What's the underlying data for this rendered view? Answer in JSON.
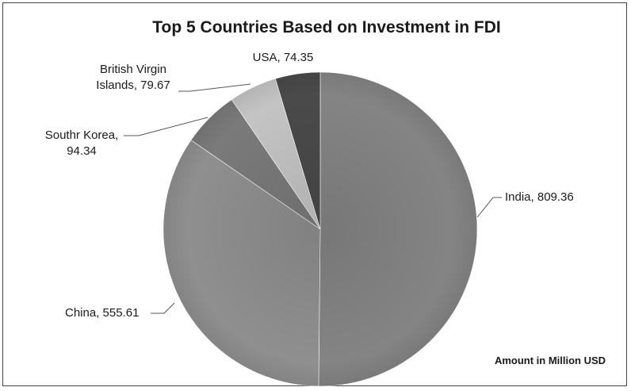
{
  "chart_data": {
    "type": "pie",
    "title": "Top 5 Countries Based on Investment in FDI",
    "subtitle": "Amount in Million USD",
    "slices": [
      {
        "name": "India",
        "value": 809.36,
        "color": "#848484",
        "label_lines": [
          "India, 809.36"
        ]
      },
      {
        "name": "China",
        "value": 555.61,
        "color": "#8f8f8f",
        "label_lines": [
          "China, 555.61"
        ]
      },
      {
        "name": "Southr Korea",
        "value": 94.34,
        "color": "#7a7a7a",
        "label_lines": [
          "Southr Korea,",
          "94.34"
        ]
      },
      {
        "name": "British Virgin Islands",
        "value": 79.67,
        "color": "#c4c4c4",
        "label_lines": [
          "British Virgin",
          "Islands, 79.67"
        ]
      },
      {
        "name": "USA",
        "value": 74.35,
        "color": "#4a4a4a",
        "label_lines": [
          "USA, 74.35"
        ]
      }
    ]
  }
}
